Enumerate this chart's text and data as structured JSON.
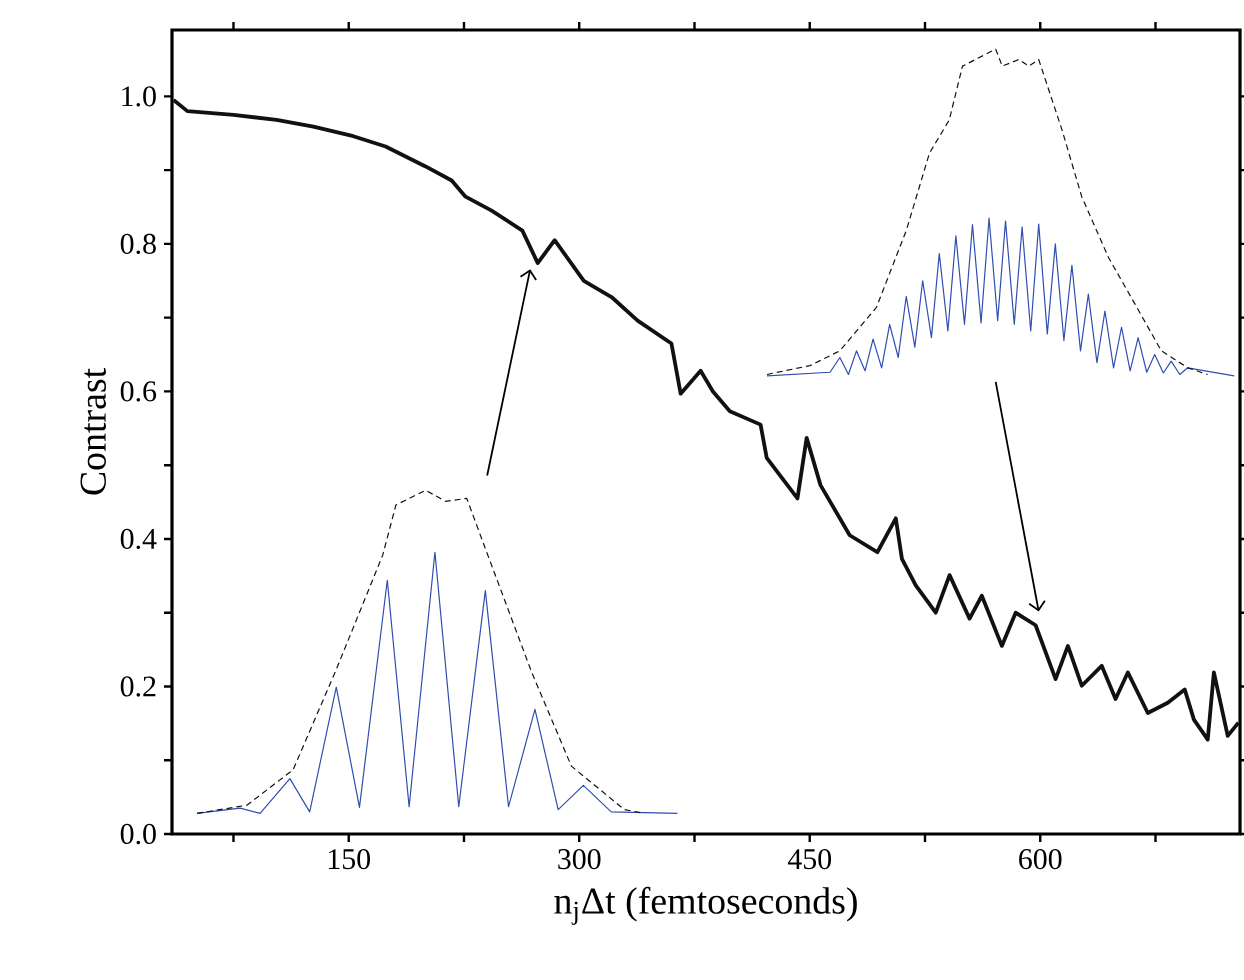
{
  "chart_data": {
    "type": "line",
    "xlabel": "n$_{j}$Δt (femtoseconds)",
    "ylabel": "Contrast",
    "xlim": [
      35,
      730
    ],
    "ylim": [
      0,
      1.09
    ],
    "xticks": [
      {
        "value": 75,
        "label": null
      },
      150,
      {
        "value": 225,
        "label": null
      },
      300,
      {
        "value": 375,
        "label": null
      },
      450,
      {
        "value": 525,
        "label": null
      },
      600,
      {
        "value": 675,
        "label": null
      }
    ],
    "yticks": [
      {
        "value": 0,
        "label": "0.0"
      },
      {
        "value": 0.1,
        "label": null
      },
      {
        "value": 0.2,
        "label": "0.2"
      },
      {
        "value": 0.3,
        "label": null
      },
      {
        "value": 0.4,
        "label": "0.4"
      },
      {
        "value": 0.5,
        "label": null
      },
      {
        "value": 0.6,
        "label": "0.6"
      },
      {
        "value": 0.7,
        "label": null
      },
      {
        "value": 0.8,
        "label": "0.8"
      },
      {
        "value": 0.9,
        "label": null
      },
      {
        "value": 1.0,
        "label": "1.0"
      }
    ],
    "grid": false,
    "marker": "none",
    "series": [
      {
        "color": "#111111",
        "line_style": "solid",
        "x": [
          36,
          45,
          75,
          103,
          127,
          153,
          174,
          200,
          217,
          226,
          243,
          263,
          273,
          284,
          303,
          321,
          338,
          360,
          366,
          379,
          387,
          398,
          418,
          422,
          442,
          448,
          457,
          476,
          494,
          506,
          510,
          519,
          532,
          541,
          554,
          562,
          575,
          584,
          597,
          610,
          618,
          627,
          640,
          649,
          657,
          670,
          683,
          694,
          700,
          709,
          713,
          722,
          729
        ],
        "values": [
          0.995,
          0.98,
          0.975,
          0.968,
          0.959,
          0.946,
          0.932,
          0.905,
          0.886,
          0.864,
          0.845,
          0.818,
          0.774,
          0.805,
          0.75,
          0.728,
          0.696,
          0.665,
          0.597,
          0.628,
          0.6,
          0.573,
          0.555,
          0.51,
          0.455,
          0.537,
          0.473,
          0.405,
          0.382,
          0.428,
          0.373,
          0.337,
          0.3,
          0.351,
          0.292,
          0.323,
          0.255,
          0.3,
          0.283,
          0.21,
          0.255,
          0.201,
          0.228,
          0.183,
          0.219,
          0.164,
          0.178,
          0.196,
          0.155,
          0.128,
          0.219,
          0.133,
          0.151
        ]
      },
      {
        "color": "#2f4eb0",
        "line_style": "solid",
        "x": [
          51.3,
          79.3,
          92.3,
          111.7,
          124.6,
          141.9,
          157,
          175.1,
          189.3,
          206.1,
          221.6,
          238.9,
          254,
          271.2,
          286.3,
          302.7,
          320.8,
          363.9
        ],
        "values": [
          0.028,
          0.035,
          0.028,
          0.075,
          0.03,
          0.199,
          0.036,
          0.344,
          0.037,
          0.382,
          0.037,
          0.33,
          0.037,
          0.169,
          0.033,
          0.066,
          0.03,
          0.028
        ]
      },
      {
        "color": "#111111",
        "line_style": "dashed",
        "x": [
          51.3,
          83.7,
          113.8,
          141.9,
          172.1,
          180.7,
          200.1,
          213.0,
          226.8,
          238.9,
          269.1,
          294.9,
          329.4,
          342.4
        ],
        "values": [
          0.028,
          0.039,
          0.087,
          0.223,
          0.378,
          0.446,
          0.466,
          0.451,
          0.455,
          0.387,
          0.219,
          0.092,
          0.033,
          0.028
        ]
      },
      {
        "color": "#2f4eb0",
        "line_style": "solid",
        "x": [
          422.2,
          463.2,
          469.6,
          475.2,
          480.4,
          486.0,
          491.2,
          496.8,
          502.0,
          507.6,
          512.8,
          518.4,
          523.5,
          529.2,
          534.3,
          539.9,
          545.1,
          550.7,
          555.9,
          561.5,
          566.7,
          572.3,
          577.4,
          583.1,
          588.2,
          593.8,
          599.0,
          604.6,
          609.8,
          615.4,
          620.6,
          626.2,
          631.3,
          636.9,
          642.1,
          647.7,
          652.9,
          658.5,
          663.7,
          669.3,
          674.5,
          680.1,
          685.2,
          690.8,
          696.0,
          726.2
        ],
        "values": [
          0.621,
          0.626,
          0.646,
          0.623,
          0.655,
          0.628,
          0.671,
          0.632,
          0.691,
          0.646,
          0.729,
          0.66,
          0.75,
          0.673,
          0.787,
          0.682,
          0.811,
          0.691,
          0.826,
          0.693,
          0.835,
          0.696,
          0.831,
          0.691,
          0.823,
          0.682,
          0.827,
          0.678,
          0.8,
          0.669,
          0.771,
          0.655,
          0.732,
          0.639,
          0.709,
          0.632,
          0.687,
          0.628,
          0.673,
          0.626,
          0.65,
          0.625,
          0.641,
          0.623,
          0.632,
          0.621
        ]
      },
      {
        "color": "#111111",
        "line_style": "dashed",
        "x": [
          422.2,
          450.2,
          469.6,
          493.4,
          512.8,
          527.9,
          540.8,
          549.4,
          571.0,
          575.3,
          586.1,
          592.5,
          599.0,
          614.1,
          627.0,
          644.3,
          661.5,
          678.8,
          696.0,
          708.9
        ],
        "values": [
          0.623,
          0.635,
          0.655,
          0.714,
          0.818,
          0.923,
          0.968,
          1.041,
          1.064,
          1.041,
          1.05,
          1.041,
          1.05,
          0.955,
          0.864,
          0.782,
          0.719,
          0.655,
          0.632,
          0.623
        ]
      }
    ]
  }
}
